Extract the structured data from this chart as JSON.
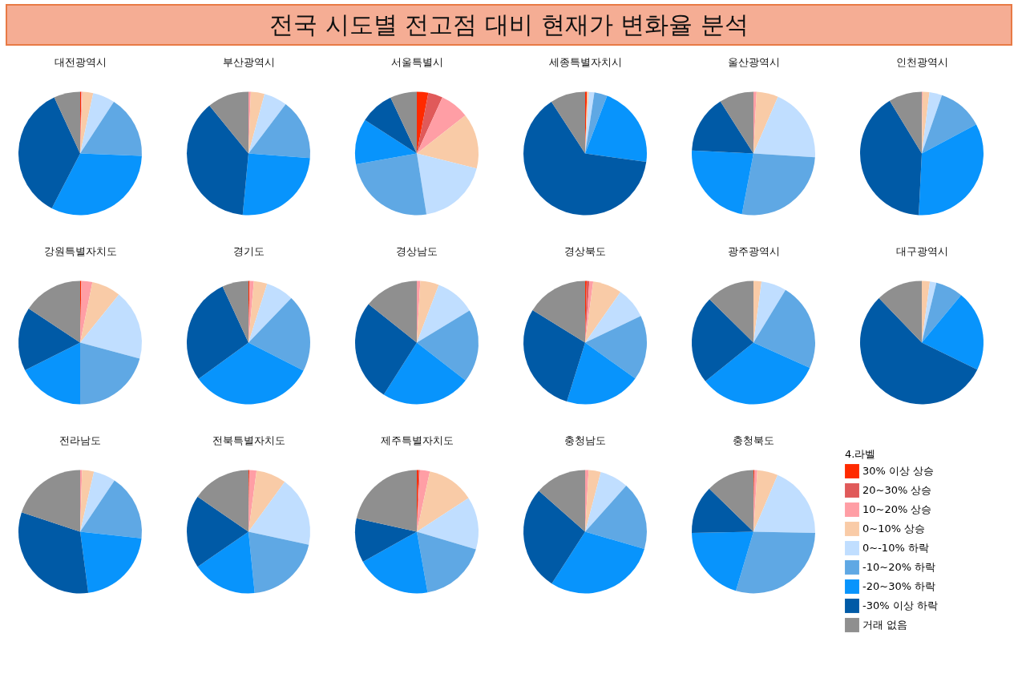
{
  "chart_data": [
    {
      "type": "other",
      "title": "전국 시도별 전고점 대비 현재가 변화율 분석"
    },
    {
      "type": "pie",
      "title": "대전광역시",
      "categories": [
        null,
        null,
        null,
        null,
        null,
        null,
        null,
        null,
        null
      ],
      "values": [
        0.3,
        0,
        0.3,
        2.8,
        5.8,
        16.4,
        32,
        35.5,
        6.9
      ],
      "colors": [
        "#ff2a00",
        "#e05a5a",
        "#ff9ea5",
        "#f9cba7",
        "#c0deff",
        "#5fa8e4",
        "#0894fc",
        "#005aa6",
        "#8f8f8f"
      ]
    },
    {
      "type": "pie",
      "title": "부산광역시",
      "categories": [
        null,
        null,
        null,
        null,
        null,
        null,
        null,
        null,
        null
      ],
      "values": [
        0,
        0,
        0.6,
        3.6,
        6.1,
        15.9,
        25.3,
        37.6,
        10.9
      ],
      "colors": [
        "#ff2a00",
        "#e05a5a",
        "#ff9ea5",
        "#f9cba7",
        "#c0deff",
        "#5fa8e4",
        "#0894fc",
        "#005aa6",
        "#8f8f8f"
      ]
    },
    {
      "type": "pie",
      "title": "서울특별시",
      "categories": [
        null,
        null,
        null,
        null,
        null,
        null,
        null,
        null,
        null
      ],
      "values": [
        3.0,
        3.8,
        7.6,
        14.5,
        18.6,
        24.7,
        11.9,
        8.9,
        7.0
      ],
      "colors": [
        "#ff2a00",
        "#e05a5a",
        "#ff9ea5",
        "#f9cba7",
        "#c0deff",
        "#5fa8e4",
        "#0894fc",
        "#005aa6",
        "#8f8f8f"
      ]
    },
    {
      "type": "pie",
      "title": "세종특별자치시",
      "categories": [
        null,
        null,
        null,
        null,
        null,
        null,
        null,
        null,
        null
      ],
      "values": [
        0.5,
        0,
        0,
        0.5,
        1.4,
        3.4,
        21.4,
        63.6,
        9.2
      ],
      "colors": [
        "#ff2a00",
        "#e05a5a",
        "#ff9ea5",
        "#f9cba7",
        "#c0deff",
        "#5fa8e4",
        "#0894fc",
        "#005aa6",
        "#8f8f8f"
      ]
    },
    {
      "type": "pie",
      "title": "울산광역시",
      "categories": [
        null,
        null,
        null,
        null,
        null,
        null,
        null,
        null,
        null
      ],
      "values": [
        0,
        0,
        0.8,
        5.7,
        19.5,
        27,
        22.8,
        15.2,
        9
      ],
      "colors": [
        "#ff2a00",
        "#e05a5a",
        "#ff9ea5",
        "#f9cba7",
        "#c0deff",
        "#5fa8e4",
        "#0894fc",
        "#005aa6",
        "#8f8f8f"
      ]
    },
    {
      "type": "pie",
      "title": "인천광역시",
      "categories": [
        null,
        null,
        null,
        null,
        null,
        null,
        null,
        null,
        null
      ],
      "values": [
        0,
        0,
        0.2,
        1.8,
        3.3,
        11.9,
        33.6,
        40.5,
        8.7
      ],
      "colors": [
        "#ff2a00",
        "#e05a5a",
        "#ff9ea5",
        "#f9cba7",
        "#c0deff",
        "#5fa8e4",
        "#0894fc",
        "#005aa6",
        "#8f8f8f"
      ]
    },
    {
      "type": "pie",
      "title": "강원특별자치도",
      "categories": [
        null,
        null,
        null,
        null,
        null,
        null,
        null,
        null,
        null
      ],
      "values": [
        0.3,
        0,
        2.9,
        7.6,
        18.4,
        20.8,
        17.6,
        16.7,
        15.7
      ],
      "colors": [
        "#ff2a00",
        "#e05a5a",
        "#ff9ea5",
        "#f9cba7",
        "#c0deff",
        "#5fa8e4",
        "#0894fc",
        "#005aa6",
        "#8f8f8f"
      ]
    },
    {
      "type": "pie",
      "title": "경기도",
      "categories": [
        null,
        null,
        null,
        null,
        null,
        null,
        null,
        null,
        null
      ],
      "values": [
        0.3,
        0,
        1.1,
        3.5,
        7.3,
        20.3,
        32.5,
        28.1,
        6.9
      ],
      "colors": [
        "#ff2a00",
        "#e05a5a",
        "#ff9ea5",
        "#f9cba7",
        "#c0deff",
        "#5fa8e4",
        "#0894fc",
        "#005aa6",
        "#8f8f8f"
      ]
    },
    {
      "type": "pie",
      "title": "경상남도",
      "categories": [
        null,
        null,
        null,
        null,
        null,
        null,
        null,
        null,
        null
      ],
      "values": [
        0,
        0,
        0.9,
        4.9,
        10.5,
        19.2,
        23.5,
        26.7,
        14.3
      ],
      "colors": [
        "#ff2a00",
        "#e05a5a",
        "#ff9ea5",
        "#f9cba7",
        "#c0deff",
        "#5fa8e4",
        "#0894fc",
        "#005aa6",
        "#8f8f8f"
      ]
    },
    {
      "type": "pie",
      "title": "경상북도",
      "categories": [
        null,
        null,
        null,
        null,
        null,
        null,
        null,
        null,
        null
      ],
      "values": [
        0.4,
        0.7,
        1.0,
        7.6,
        8.2,
        17,
        19.9,
        29,
        16.2
      ],
      "colors": [
        "#ff2a00",
        "#e05a5a",
        "#ff9ea5",
        "#f9cba7",
        "#c0deff",
        "#5fa8e4",
        "#0894fc",
        "#005aa6",
        "#8f8f8f"
      ]
    },
    {
      "type": "pie",
      "title": "광주광역시",
      "categories": [
        null,
        null,
        null,
        null,
        null,
        null,
        null,
        null,
        null
      ],
      "values": [
        0,
        0,
        0,
        2.1,
        6.6,
        23,
        32.5,
        23.2,
        12.6
      ],
      "colors": [
        "#ff2a00",
        "#e05a5a",
        "#ff9ea5",
        "#f9cba7",
        "#c0deff",
        "#5fa8e4",
        "#0894fc",
        "#005aa6",
        "#8f8f8f"
      ]
    },
    {
      "type": "pie",
      "title": "대구광역시",
      "categories": [
        null,
        null,
        null,
        null,
        null,
        null,
        null,
        null,
        null
      ],
      "values": [
        0,
        0,
        0,
        2.1,
        1.7,
        7.2,
        21.2,
        55.6,
        12.2
      ],
      "colors": [
        "#ff2a00",
        "#e05a5a",
        "#ff9ea5",
        "#f9cba7",
        "#c0deff",
        "#5fa8e4",
        "#0894fc",
        "#005aa6",
        "#8f8f8f"
      ]
    },
    {
      "type": "pie",
      "title": "전라남도",
      "categories": [
        null,
        null,
        null,
        null,
        null,
        null,
        null,
        null,
        null
      ],
      "values": [
        0,
        0,
        0.5,
        3.1,
        5.8,
        17.3,
        21.2,
        32.2,
        19.9
      ],
      "colors": [
        "#ff2a00",
        "#e05a5a",
        "#ff9ea5",
        "#f9cba7",
        "#c0deff",
        "#5fa8e4",
        "#0894fc",
        "#005aa6",
        "#8f8f8f"
      ]
    },
    {
      "type": "pie",
      "title": "전북특별자치도",
      "categories": [
        null,
        null,
        null,
        null,
        null,
        null,
        null,
        null,
        null
      ],
      "values": [
        0.2,
        0,
        1.9,
        7.9,
        18.4,
        20,
        17,
        19.2,
        15.4
      ],
      "colors": [
        "#ff2a00",
        "#e05a5a",
        "#ff9ea5",
        "#f9cba7",
        "#c0deff",
        "#5fa8e4",
        "#0894fc",
        "#005aa6",
        "#8f8f8f"
      ]
    },
    {
      "type": "pie",
      "title": "제주특별자치도",
      "categories": [
        null,
        null,
        null,
        null,
        null,
        null,
        null,
        null,
        null
      ],
      "values": [
        0.5,
        0.3,
        2.6,
        12.4,
        13.8,
        17.6,
        19.7,
        11.6,
        21.5
      ],
      "colors": [
        "#ff2a00",
        "#e05a5a",
        "#ff9ea5",
        "#f9cba7",
        "#c0deff",
        "#5fa8e4",
        "#0894fc",
        "#005aa6",
        "#8f8f8f"
      ]
    },
    {
      "type": "pie",
      "title": "충청남도",
      "categories": [
        null,
        null,
        null,
        null,
        null,
        null,
        null,
        null,
        null
      ],
      "values": [
        0,
        0,
        0.9,
        3.2,
        7.5,
        17.9,
        29.6,
        27.4,
        13.5
      ],
      "colors": [
        "#ff2a00",
        "#e05a5a",
        "#ff9ea5",
        "#f9cba7",
        "#c0deff",
        "#5fa8e4",
        "#0894fc",
        "#005aa6",
        "#8f8f8f"
      ]
    },
    {
      "type": "pie",
      "title": "충청북도",
      "categories": [
        "30% 이상 상승",
        "20~30% 상승",
        "10~20% 상승",
        "0~10% 상승",
        "0~-10% 하락",
        "-10~20% 하락",
        "-20~30% 하락",
        "-30% 이상 하락",
        "거래 없음"
      ],
      "values": [
        0.2,
        0,
        0.8,
        5.4,
        18.9,
        29.3,
        20.1,
        12.6,
        12.7
      ],
      "colors": [
        "#ff2a00",
        "#e05a5a",
        "#ff9ea5",
        "#f9cba7",
        "#c0deff",
        "#5fa8e4",
        "#0894fc",
        "#005aa6",
        "#8f8f8f"
      ],
      "legend": "right",
      "legend_title": "4.라벨"
    }
  ]
}
